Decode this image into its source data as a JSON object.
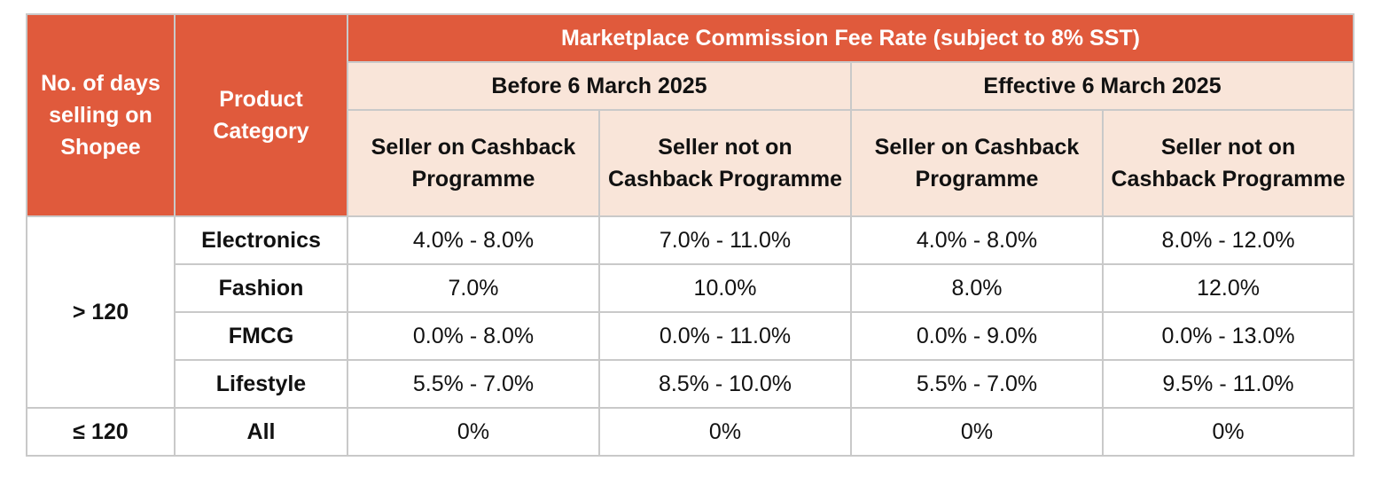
{
  "header": {
    "days_label": "No. of days selling on Shopee",
    "category_label": "Product Category",
    "title": "Marketplace Commission Fee Rate (subject to 8% SST)",
    "periods": [
      "Before 6 March 2025",
      "Effective 6 March 2025"
    ],
    "seller_types": [
      "Seller on Cashback Programme",
      "Seller not on Cashback Programme",
      "Seller on Cashback Programme",
      "Seller not on Cashback Programme"
    ]
  },
  "groups": [
    {
      "days": "> 120",
      "rows": [
        {
          "category": "Electronics",
          "values": [
            "4.0% - 8.0%",
            "7.0% - 11.0%",
            "4.0% - 8.0%",
            "8.0% - 12.0%"
          ]
        },
        {
          "category": "Fashion",
          "values": [
            "7.0%",
            "10.0%",
            "8.0%",
            "12.0%"
          ]
        },
        {
          "category": "FMCG",
          "values": [
            "0.0% - 8.0%",
            "0.0% - 11.0%",
            "0.0% - 9.0%",
            "0.0% - 13.0%"
          ]
        },
        {
          "category": "Lifestyle",
          "values": [
            "5.5% - 7.0%",
            "8.5% - 10.0%",
            "5.5% - 7.0%",
            "9.5% - 11.0%"
          ]
        }
      ]
    },
    {
      "days": "≤ 120",
      "rows": [
        {
          "category": "All",
          "values": [
            "0%",
            "0%",
            "0%",
            "0%"
          ]
        }
      ]
    }
  ]
}
